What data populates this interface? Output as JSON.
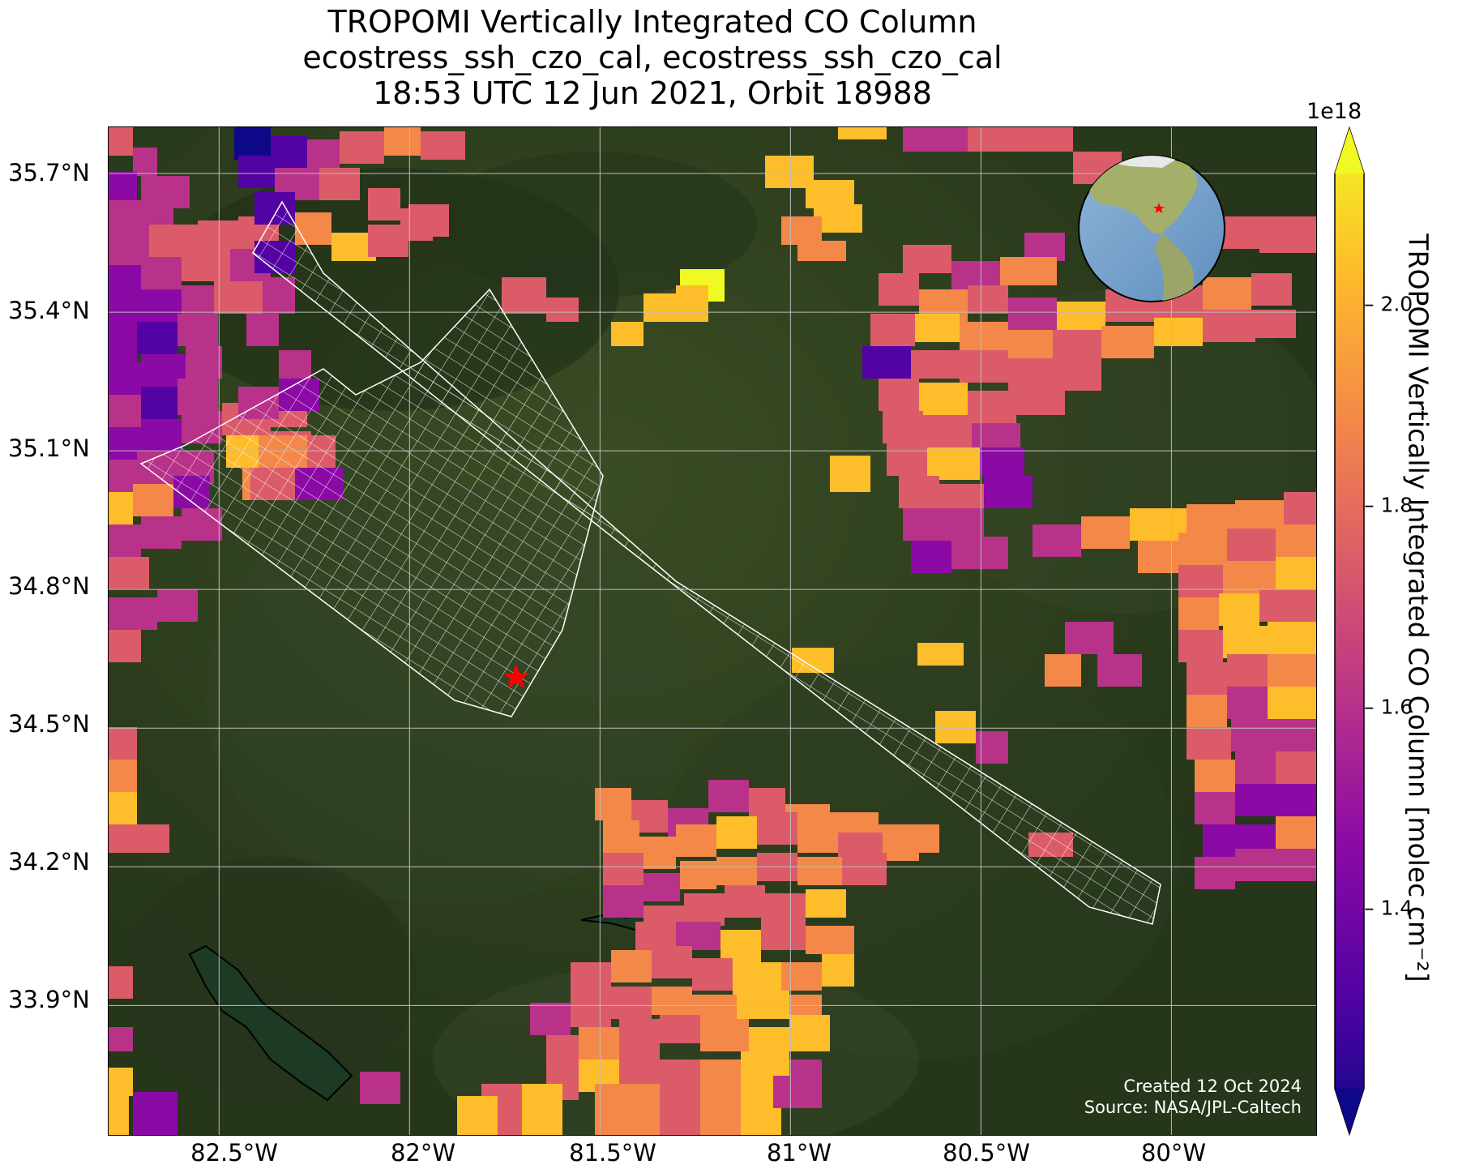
{
  "title": {
    "line1": "TROPOMI Vertically Integrated CO Column",
    "line2": "ecostress_ssh_czo_cal, ecostress_ssh_czo_cal",
    "line3": "18:53 UTC 12 Jun 2021, Orbit 18988"
  },
  "map": {
    "lon_range": [
      -82.79,
      -79.62
    ],
    "lat_range": [
      33.62,
      35.8
    ],
    "x_ticks": [
      "82.5°W",
      "82°W",
      "81.5°W",
      "81°W",
      "80.5°W",
      "80°W"
    ],
    "y_ticks": [
      "35.7°N",
      "35.4°N",
      "35.1°N",
      "34.8°N",
      "34.5°N",
      "34.2°N",
      "33.9°N"
    ],
    "target_marker": {
      "lon": -81.72,
      "lat": 34.61,
      "color": "#ff0000",
      "icon": "star-icon"
    },
    "basemap": "satellite imagery",
    "grid": true,
    "inset": {
      "icon": "globe-icon",
      "marker": "star-icon"
    }
  },
  "colorbar": {
    "label": "TROPOMI Vertically Integrated CO Column [molec cm$^{-2}$]",
    "label_display": "TROPOMI Vertically Integrated CO Column [molec cm⁻²]",
    "offset": "1e18",
    "ticks": [
      "1.4",
      "1.6",
      "1.8",
      "2.0"
    ],
    "tick_values": [
      1.4,
      1.6,
      1.8,
      2.0
    ],
    "range": [
      1.22,
      2.13
    ],
    "colormap": "plasma"
  },
  "credits": {
    "created": "Created 12 Oct 2024",
    "source": "Source: NASA/JPL-Caltech"
  }
}
